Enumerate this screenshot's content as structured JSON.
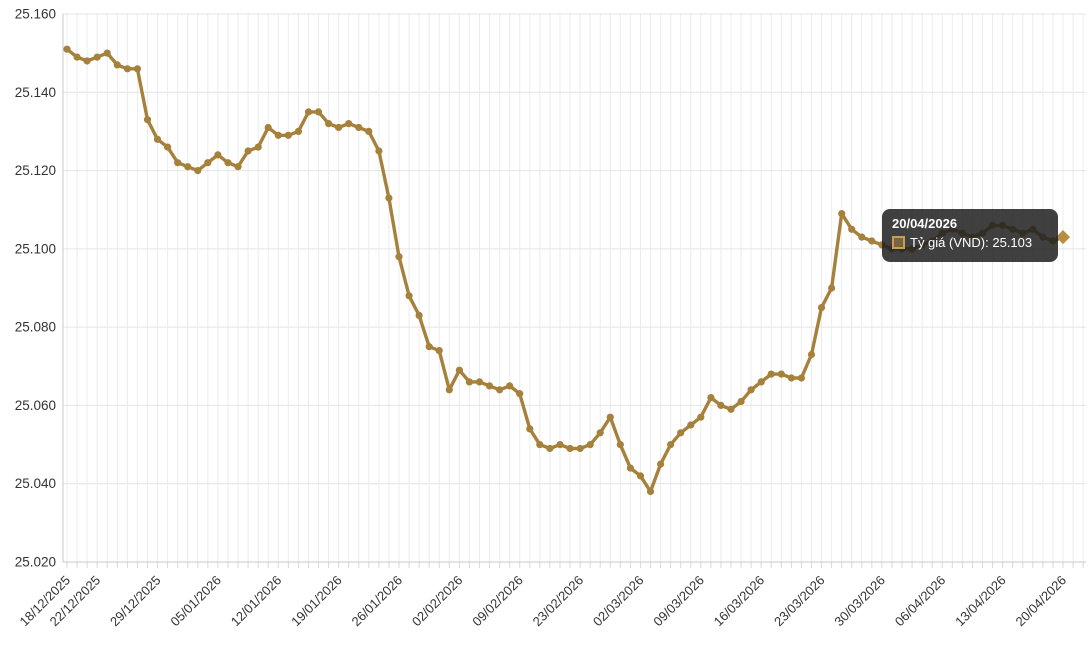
{
  "chart_data": {
    "type": "line",
    "title": "",
    "xlabel": "",
    "ylabel": "",
    "grid": true,
    "legend_position": "none",
    "ylim": [
      25.02,
      25.16
    ],
    "y_tick_labels": [
      "25.160",
      "25.140",
      "25.120",
      "25.100",
      "25.080",
      "25.060",
      "25.040",
      "25.020"
    ],
    "x_tick_labels": [
      "18/12/2025",
      "22/12/2025",
      "29/12/2025",
      "05/01/2026",
      "12/01/2026",
      "19/01/2026",
      "26/01/2026",
      "02/02/2026",
      "09/02/2026",
      "23/02/2026",
      "02/03/2026",
      "09/03/2026",
      "16/03/2026",
      "23/03/2026",
      "30/03/2026",
      "06/04/2026",
      "13/04/2026",
      "20/04/2026"
    ],
    "x_tick_indices": [
      0,
      3,
      9,
      15,
      21,
      27,
      33,
      39,
      45,
      51,
      57,
      63,
      69,
      75,
      81,
      87,
      93,
      99
    ],
    "series": [
      {
        "name": "Tỷ giá (VND)",
        "color": "#A6813C",
        "values": [
          25.151,
          25.149,
          25.148,
          25.149,
          25.15,
          25.147,
          25.146,
          25.146,
          25.133,
          25.128,
          25.126,
          25.122,
          25.121,
          25.12,
          25.122,
          25.124,
          25.122,
          25.121,
          25.125,
          25.126,
          25.131,
          25.129,
          25.129,
          25.13,
          25.135,
          25.135,
          25.132,
          25.131,
          25.132,
          25.131,
          25.13,
          25.125,
          25.113,
          25.098,
          25.088,
          25.083,
          25.075,
          25.074,
          25.064,
          25.069,
          25.066,
          25.066,
          25.065,
          25.064,
          25.065,
          25.063,
          25.054,
          25.05,
          25.049,
          25.05,
          25.049,
          25.049,
          25.05,
          25.053,
          25.057,
          25.05,
          25.044,
          25.042,
          25.038,
          25.045,
          25.05,
          25.053,
          25.055,
          25.057,
          25.062,
          25.06,
          25.059,
          25.061,
          25.064,
          25.066,
          25.068,
          25.068,
          25.067,
          25.067,
          25.073,
          25.085,
          25.09,
          25.109,
          25.105,
          25.103,
          25.102,
          25.101,
          25.1,
          25.1,
          25.1,
          25.101,
          25.102,
          25.104,
          25.105,
          25.104,
          25.103,
          25.104,
          25.106,
          25.106,
          25.105,
          25.104,
          25.105,
          25.103,
          25.102,
          25.103
        ]
      }
    ],
    "hovered_point": {
      "index": 99,
      "date": "20/04/2026",
      "value": 25.103
    }
  },
  "tooltip": {
    "date": "20/04/2026",
    "series_label": "Tỷ giá (VND)",
    "value_text": "Tỷ giá (VND): 25.103"
  },
  "colors": {
    "line": "#A6813C",
    "marker": "#A6813C",
    "hover_marker": "#B78D43",
    "grid_h": "#e4e4e4",
    "grid_v": "#ececec",
    "tick": "#d9d9d9",
    "axis": "#c9c9c9",
    "label": "#333333",
    "tooltip_bg": "rgba(33,33,33,0.86)",
    "tooltip_text": "#ffffff"
  }
}
